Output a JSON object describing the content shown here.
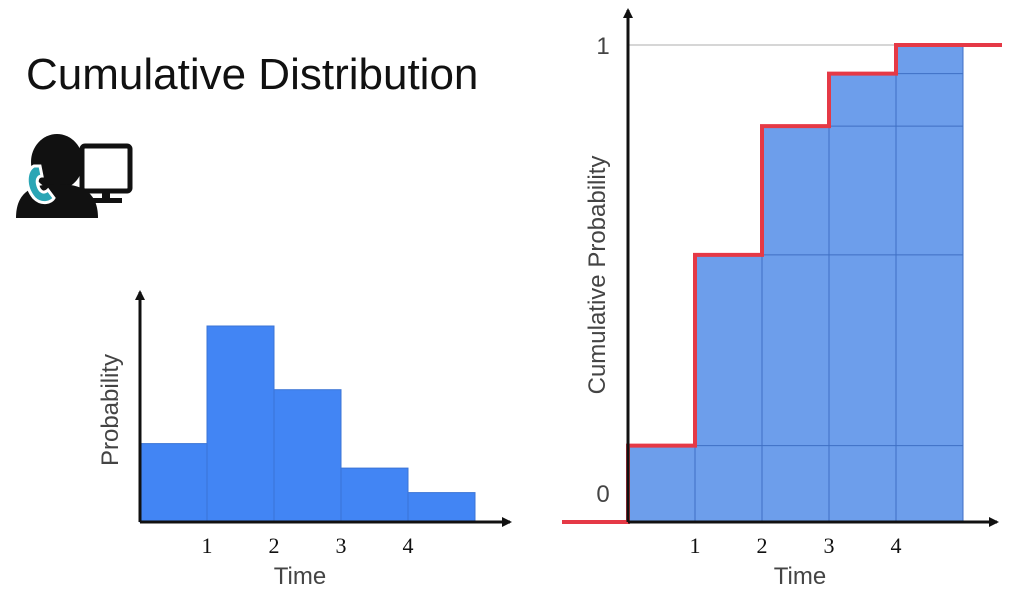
{
  "title": "Cumulative Distribution",
  "icon": "call-center-agent-icon",
  "colors": {
    "bar": "#4285f4",
    "bar_light": "#6d9eeb",
    "cdf": "#e53946",
    "axis": "#111111"
  },
  "chart_data": [
    {
      "type": "bar",
      "xlabel": "Time",
      "ylabel": "Probability",
      "xticks": [
        "1",
        "2",
        "3",
        "4"
      ],
      "values": [
        0.16,
        0.4,
        0.27,
        0.11,
        0.06
      ],
      "ylim": [
        0,
        0.5
      ]
    },
    {
      "type": "bar",
      "xlabel": "Time",
      "ylabel": "Cumulative Probability",
      "xticks": [
        "1",
        "2",
        "3",
        "4"
      ],
      "yticks": [
        "0",
        "1"
      ],
      "values": [
        0.16,
        0.56,
        0.83,
        0.94,
        1.0
      ],
      "ylim": [
        0,
        1
      ],
      "step_line": true
    }
  ]
}
